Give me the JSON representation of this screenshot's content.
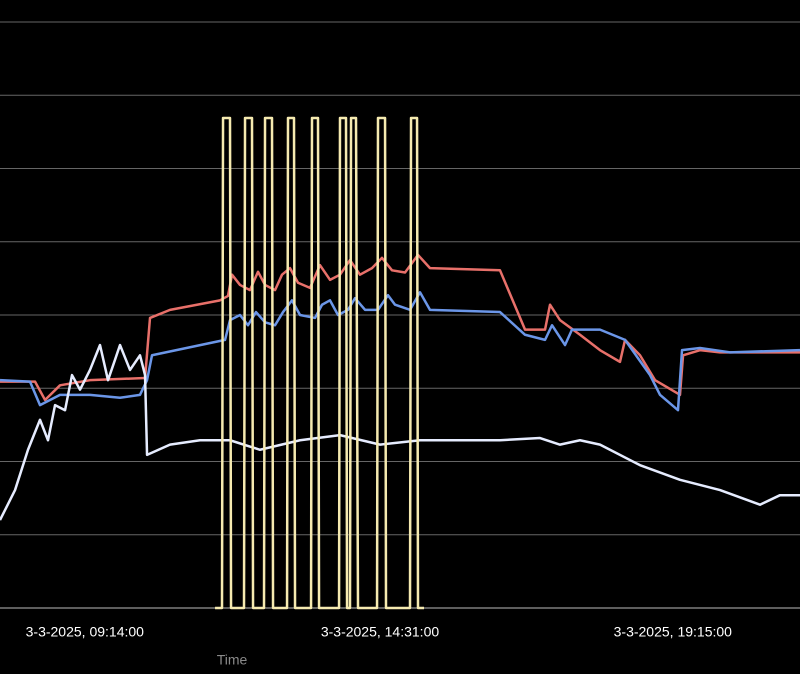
{
  "chart_data": {
    "type": "line",
    "x_label": "Time",
    "xlim": [
      0,
      100
    ],
    "xticks": [
      {
        "value": 10.6,
        "label": "3-3-2025, 09:14:00"
      },
      {
        "value": 47.5,
        "label": "3-3-2025, 14:31:00"
      },
      {
        "value": 84.1,
        "label": "3-3-2025, 19:15:00"
      }
    ],
    "ylim": [
      0,
      8.3
    ],
    "yticks": [
      0,
      1,
      2,
      3,
      4,
      5,
      6,
      7,
      8
    ],
    "grid": true,
    "series": [
      {
        "color": "#e8706a",
        "x": [
          0,
          4.38,
          5.63,
          7.5,
          11.25,
          18.13,
          18.75,
          21.25,
          27.5,
          28.5,
          29,
          30,
          31.25,
          32.25,
          33.13,
          34.38,
          35.25,
          36.25,
          37.25,
          38.75,
          40,
          41.25,
          42.5,
          43.75,
          45,
          46.5,
          47.75,
          49,
          50.63,
          52.25,
          53.75,
          62.5,
          65.63,
          68.13,
          68.75,
          70,
          72.5,
          75,
          77.5,
          78.13,
          80,
          81.88,
          85,
          85.38,
          87.5,
          90,
          100
        ],
        "values": [
          3.09,
          3.09,
          2.84,
          3.04,
          3.11,
          3.14,
          3.96,
          4.07,
          4.2,
          4.26,
          4.55,
          4.41,
          4.34,
          4.59,
          4.41,
          4.34,
          4.55,
          4.64,
          4.44,
          4.37,
          4.68,
          4.48,
          4.55,
          4.75,
          4.55,
          4.64,
          4.78,
          4.61,
          4.58,
          4.82,
          4.64,
          4.61,
          3.8,
          3.8,
          4.14,
          3.93,
          3.73,
          3.52,
          3.36,
          3.66,
          3.45,
          3.11,
          2.91,
          3.45,
          3.52,
          3.49,
          3.49
        ]
      },
      {
        "color": "#6b96e8",
        "x": [
          0,
          3.75,
          5,
          7.5,
          11.25,
          15,
          17.5,
          18.38,
          19,
          28.13,
          28.75,
          30,
          31,
          32,
          33.13,
          34.38,
          35.38,
          36.5,
          37.5,
          39.38,
          40.25,
          41.25,
          42.25,
          43.5,
          44.38,
          45.63,
          47.25,
          48.5,
          49.38,
          51.25,
          52.5,
          53.75,
          62.5,
          65.63,
          68.13,
          69,
          70.63,
          71.5,
          75,
          78.13,
          81.25,
          82.5,
          84.75,
          85.25,
          87.5,
          91.25,
          100
        ],
        "values": [
          3.11,
          3.09,
          2.77,
          2.91,
          2.91,
          2.87,
          2.91,
          3.11,
          3.45,
          3.66,
          3.93,
          4.0,
          3.86,
          4.04,
          3.9,
          3.86,
          4.04,
          4.2,
          4.0,
          3.96,
          4.14,
          4.2,
          4.0,
          4.07,
          4.23,
          4.07,
          4.07,
          4.27,
          4.14,
          4.07,
          4.31,
          4.07,
          4.04,
          3.73,
          3.66,
          3.86,
          3.59,
          3.8,
          3.8,
          3.66,
          3.18,
          2.91,
          2.7,
          3.52,
          3.55,
          3.49,
          3.52
        ]
      },
      {
        "color": "#e6ecff",
        "x": [
          0,
          1.88,
          3.5,
          5,
          6,
          6.88,
          8.13,
          9,
          10,
          11.25,
          12.5,
          13.5,
          14.38,
          15,
          16.25,
          17.5,
          18.13,
          18.38,
          21.25,
          25,
          28.75,
          32.5,
          37.5,
          42.5,
          47.5,
          52.5,
          57.5,
          62.5,
          67.5,
          70,
          72.5,
          75,
          80,
          85,
          90,
          95,
          97.5,
          100
        ],
        "values": [
          1.2,
          1.61,
          2.16,
          2.57,
          2.29,
          2.77,
          2.7,
          3.18,
          2.98,
          3.25,
          3.59,
          3.11,
          3.39,
          3.59,
          3.25,
          3.45,
          3.18,
          2.09,
          2.23,
          2.29,
          2.29,
          2.16,
          2.29,
          2.36,
          2.23,
          2.29,
          2.29,
          2.29,
          2.32,
          2.23,
          2.29,
          2.23,
          1.95,
          1.75,
          1.61,
          1.41,
          1.54,
          1.54
        ]
      },
      {
        "color": "#f5eab0",
        "x": [
          26.88,
          27.75,
          27.88,
          28.75,
          28.88,
          30.5,
          30.63,
          31.5,
          31.63,
          33,
          33.13,
          34,
          34.13,
          35.88,
          36,
          36.75,
          36.88,
          38.88,
          39,
          39.75,
          39.88,
          42.38,
          42.5,
          43.25,
          43.38,
          43.75,
          43.88,
          44.5,
          44.75,
          47.13,
          47.25,
          48.13,
          48.25,
          51.25,
          51.38,
          52.13,
          52.25,
          53
        ],
        "values": [
          0,
          0,
          6.69,
          6.69,
          0,
          0,
          6.69,
          6.69,
          0,
          0,
          6.69,
          6.69,
          0,
          0,
          6.69,
          6.69,
          0,
          0,
          6.69,
          6.69,
          0,
          0,
          6.69,
          6.69,
          0,
          0,
          6.69,
          6.69,
          0,
          0,
          6.69,
          6.69,
          0,
          0,
          6.69,
          6.69,
          0,
          0
        ]
      }
    ]
  }
}
